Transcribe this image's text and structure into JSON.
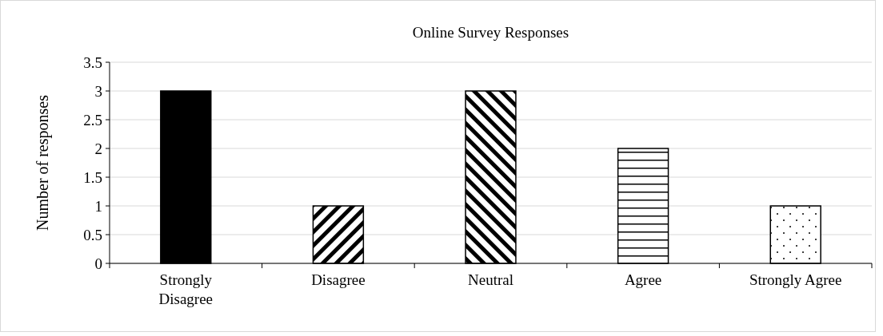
{
  "chart_data": {
    "type": "bar",
    "title": "Online Survey Responses",
    "ylabel": "Number of responses",
    "categories": [
      "Strongly Disagree",
      "Disagree",
      "Neutral",
      "Agree",
      "Strongly Agree"
    ],
    "values": [
      3,
      1,
      3,
      2,
      1
    ],
    "colors": [
      "#000000",
      "#000000",
      "#000000",
      "#000000",
      "#000000"
    ],
    "ylim": [
      0,
      3.5
    ],
    "yticks": [
      0,
      0.5,
      1,
      1.5,
      2,
      2.5,
      3,
      3.5
    ],
    "grid": "y"
  }
}
